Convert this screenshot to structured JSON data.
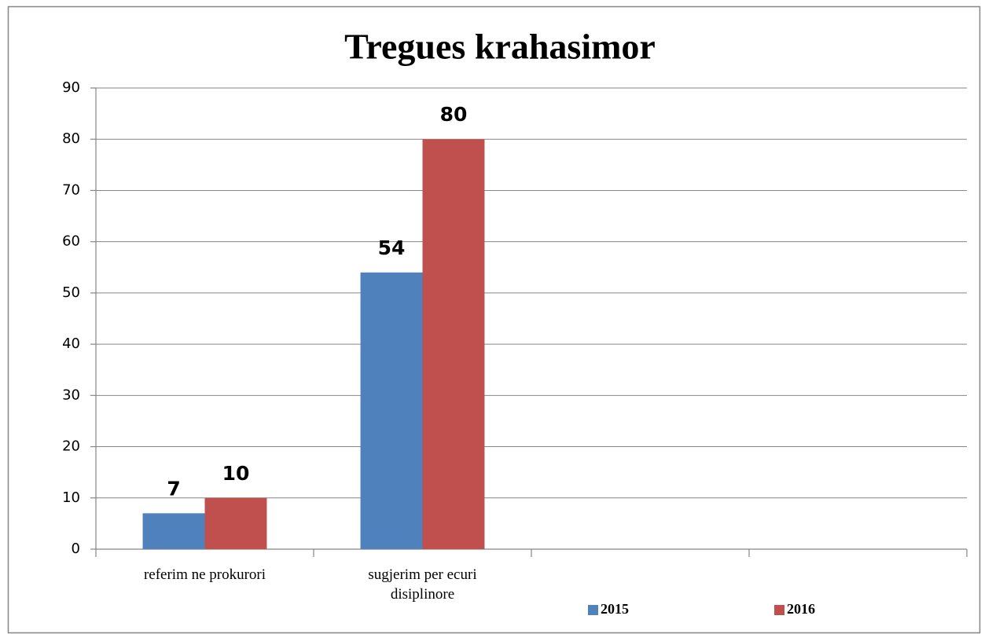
{
  "chart_data": {
    "type": "bar",
    "title": "Tregues krahasimor",
    "categories": [
      "referim ne prokurori",
      "sugjerim per ecuri disiplinore",
      null,
      null
    ],
    "series": [
      {
        "name": "2015",
        "color": "#4f81bd",
        "values": [
          7,
          54,
          null,
          null
        ]
      },
      {
        "name": "2016",
        "color": "#c0504d",
        "values": [
          10,
          80,
          null,
          null
        ]
      }
    ],
    "ylim": [
      0,
      90
    ],
    "yticks": [
      0,
      10,
      20,
      30,
      40,
      50,
      60,
      70,
      80,
      90
    ],
    "grid": true,
    "legend": "bottom"
  }
}
